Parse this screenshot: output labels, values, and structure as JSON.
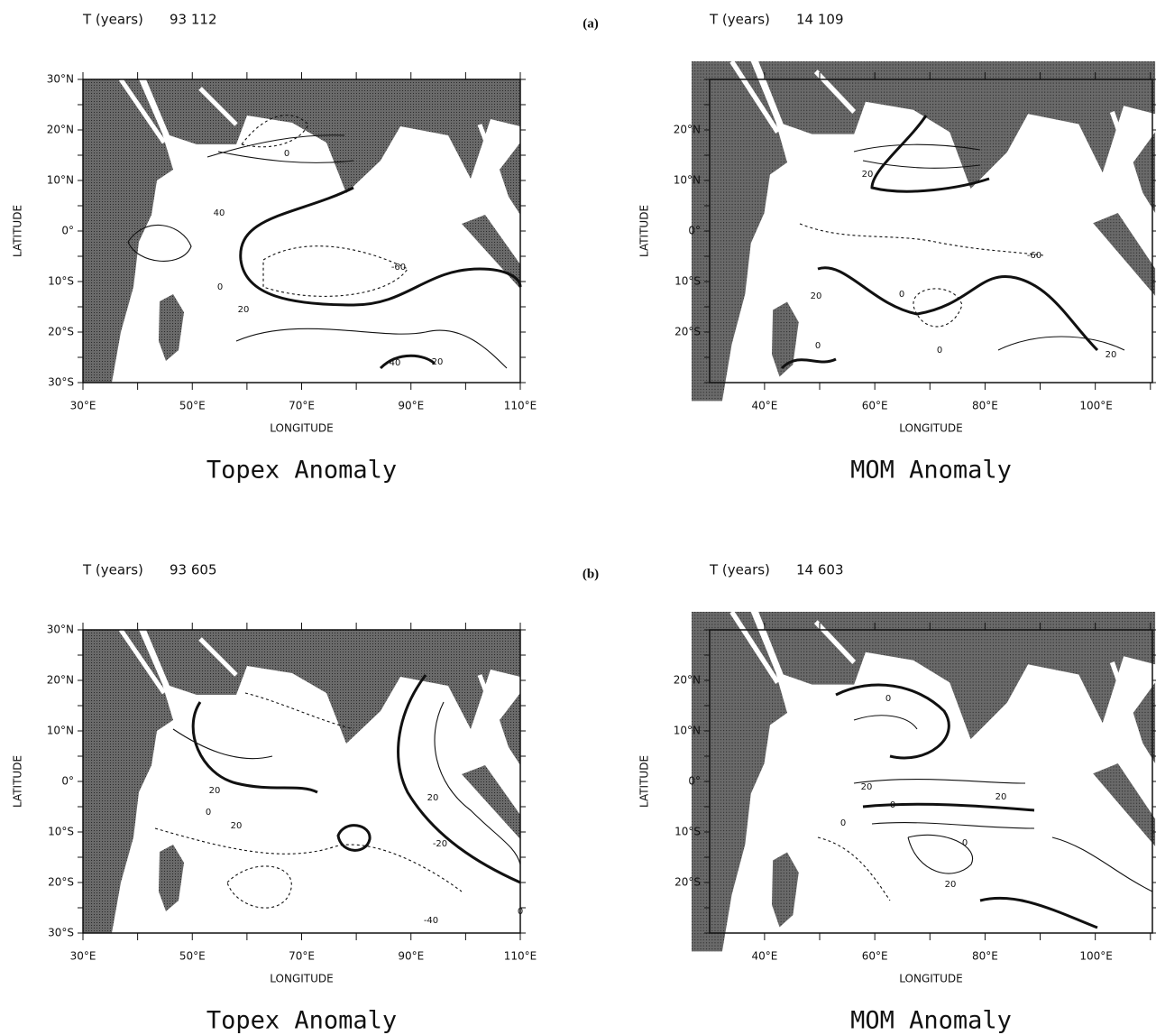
{
  "figure_labels": [
    "(a)",
    "(b)"
  ],
  "panels": [
    {
      "time_label": "T (years)",
      "time": "93 112",
      "x_axis_title": "LONGITUDE",
      "y_axis_title": "LATITUDE",
      "xticks": [
        "30°E",
        "50°E",
        "70°E",
        "90°E",
        "110°E"
      ],
      "yticks": [
        "30°N",
        "20°N",
        "10°N",
        "0°",
        "10°S",
        "20°S",
        "30°S"
      ],
      "contour_labels": [
        "0",
        "40",
        "-60",
        "0",
        "20",
        "40",
        "20"
      ],
      "caption": "Topex Anomaly"
    },
    {
      "time_label": "T (years)",
      "time": "14 109",
      "x_axis_title": "LONGITUDE",
      "y_axis_title": "LATITUDE",
      "xticks": [
        "40°E",
        "60°E",
        "80°E",
        "100°E"
      ],
      "yticks": [
        "20°N",
        "10°N",
        "0°",
        "10°S",
        "20°S"
      ],
      "contour_labels": [
        "20",
        "20",
        "0",
        "-60",
        "0",
        "0",
        "20"
      ],
      "caption": "MOM Anomaly"
    },
    {
      "time_label": "T (years)",
      "time": "93 605",
      "x_axis_title": "LONGITUDE",
      "y_axis_title": "LATITUDE",
      "xticks": [
        "30°E",
        "50°E",
        "70°E",
        "90°E",
        "110°E"
      ],
      "yticks": [
        "30°N",
        "20°N",
        "10°N",
        "0°",
        "10°S",
        "20°S",
        "30°S"
      ],
      "contour_labels": [
        "20",
        "20",
        "0",
        "20",
        "-20",
        "-40",
        "0"
      ],
      "caption": "Topex Anomaly"
    },
    {
      "time_label": "T (years)",
      "time": "14 603",
      "x_axis_title": "LONGITUDE",
      "y_axis_title": "LATITUDE",
      "xticks": [
        "40°E",
        "60°E",
        "80°E",
        "100°E"
      ],
      "yticks": [
        "20°N",
        "10°N",
        "0°",
        "10°S",
        "20°S"
      ],
      "contour_labels": [
        "0",
        "20",
        "0",
        "20",
        "0",
        "0",
        "20"
      ],
      "caption": "MOM Anomaly"
    }
  ]
}
